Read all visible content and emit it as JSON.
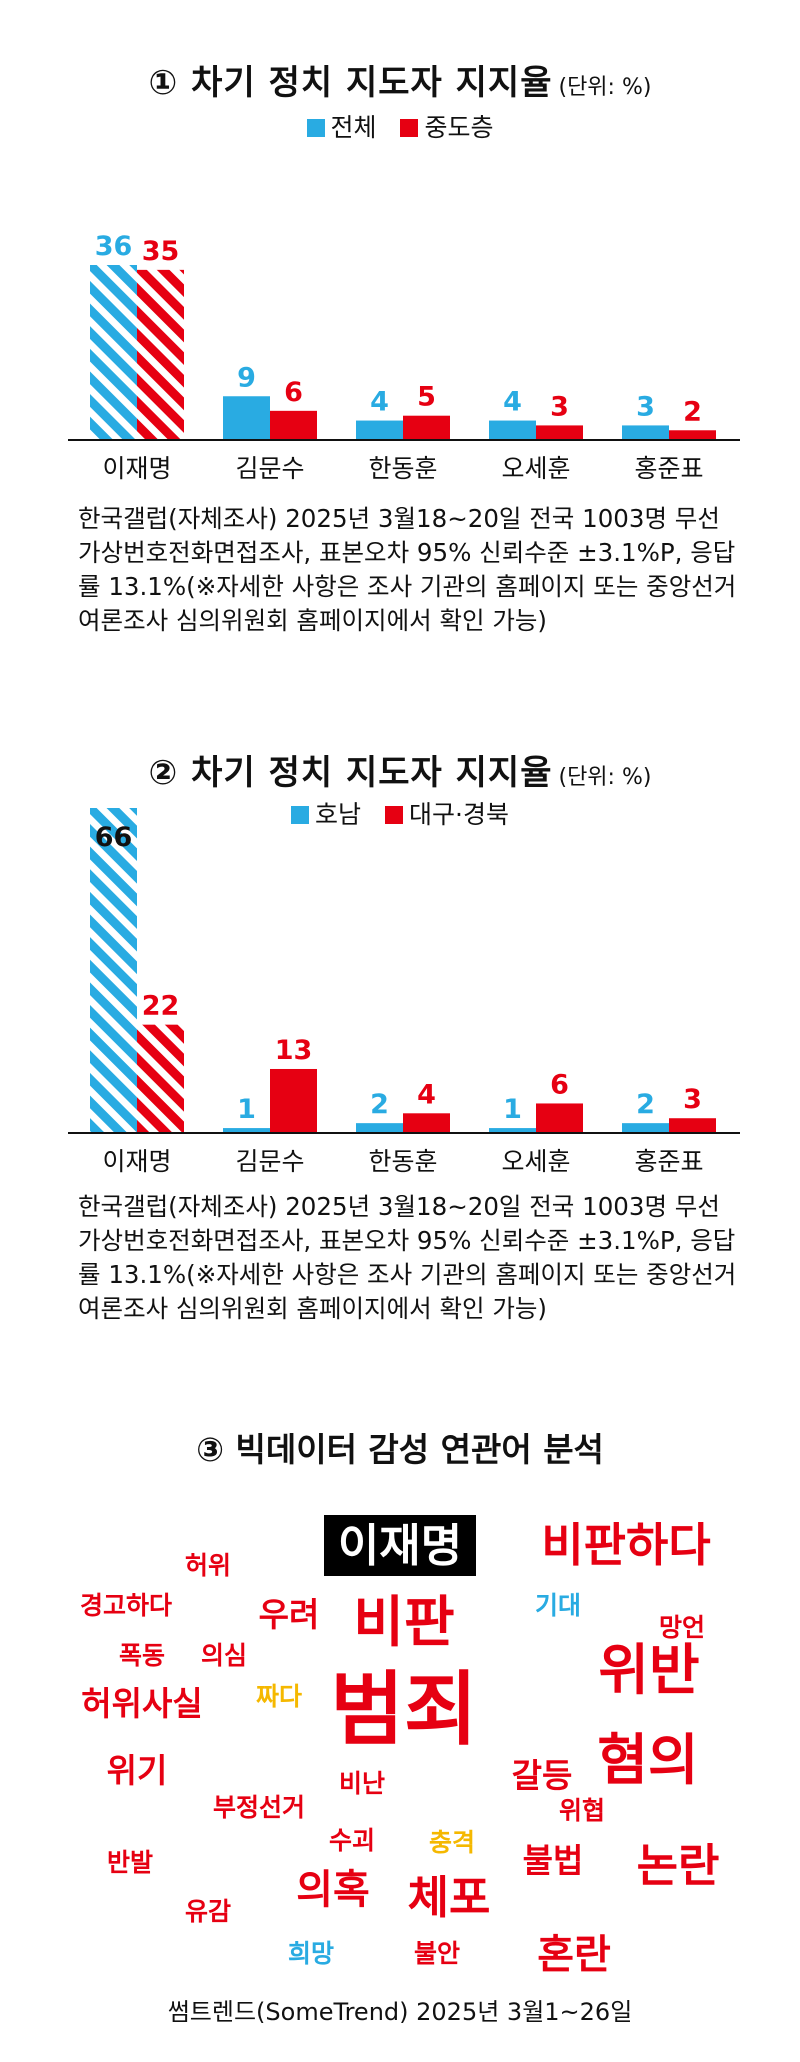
{
  "colors": {
    "blue": "#29ABE2",
    "red": "#E60012",
    "yellow": "#F5B800",
    "black": "#000000"
  },
  "chart_data": [
    {
      "type": "bar",
      "title": "① 차기 정치 지도자 지지율",
      "unit": "(단위: %)",
      "categories": [
        "이재명",
        "김문수",
        "한동훈",
        "오세훈",
        "홍준표"
      ],
      "series": [
        {
          "name": "전체",
          "values": [
            36,
            9,
            4,
            4,
            3
          ]
        },
        {
          "name": "중도층",
          "values": [
            35,
            6,
            5,
            3,
            2
          ]
        }
      ],
      "ylim": [
        0,
        36
      ],
      "source": "한국갤럽(자체조사) 2025년 3월18~20일 전국 1003명 무선 가상번호전화면접조사, 표본오차 95% 신뢰수준 ±3.1%P, 응답률 13.1%(※자세한 사항은 조사 기관의 홈페이지 또는 중앙선거여론조사 심의위원회 홈페이지에서 확인 가능)"
    },
    {
      "type": "bar",
      "title": "② 차기 정치 지도자 지지율",
      "unit": "(단위: %)",
      "categories": [
        "이재명",
        "김문수",
        "한동훈",
        "오세훈",
        "홍준표"
      ],
      "series": [
        {
          "name": "호남",
          "values": [
            66,
            1,
            2,
            1,
            2
          ]
        },
        {
          "name": "대구·경북",
          "values": [
            22,
            13,
            4,
            6,
            3
          ]
        }
      ],
      "ylim": [
        0,
        66
      ],
      "source": "한국갤럽(자체조사) 2025년 3월18~20일 전국 1003명 무선 가상번호전화면접조사, 표본오차 95% 신뢰수준 ±3.1%P, 응답률 13.1%(※자세한 사항은 조사 기관의 홈페이지 또는 중앙선거여론조사 심의위원회 홈페이지에서 확인 가능)"
    }
  ],
  "wordcloud": {
    "title": "③ 빅데이터 감성 연관어 분석",
    "words": [
      {
        "text": "이재명",
        "color": "boxed"
      },
      {
        "text": "비판하다",
        "color": "red"
      },
      {
        "text": "허위",
        "color": "red"
      },
      {
        "text": "경고하다",
        "color": "red"
      },
      {
        "text": "우려",
        "color": "red"
      },
      {
        "text": "비판",
        "color": "red"
      },
      {
        "text": "기대",
        "color": "blue"
      },
      {
        "text": "망언",
        "color": "red"
      },
      {
        "text": "폭동",
        "color": "red"
      },
      {
        "text": "의심",
        "color": "red"
      },
      {
        "text": "위반",
        "color": "red"
      },
      {
        "text": "허위사실",
        "color": "red"
      },
      {
        "text": "짜다",
        "color": "yellow"
      },
      {
        "text": "범죄",
        "color": "red"
      },
      {
        "text": "위기",
        "color": "red"
      },
      {
        "text": "혐의",
        "color": "red"
      },
      {
        "text": "갈등",
        "color": "red"
      },
      {
        "text": "비난",
        "color": "red"
      },
      {
        "text": "부정선거",
        "color": "red"
      },
      {
        "text": "위협",
        "color": "red"
      },
      {
        "text": "수괴",
        "color": "red"
      },
      {
        "text": "반발",
        "color": "red"
      },
      {
        "text": "충격",
        "color": "yellow"
      },
      {
        "text": "불법",
        "color": "red"
      },
      {
        "text": "논란",
        "color": "red"
      },
      {
        "text": "의혹",
        "color": "red"
      },
      {
        "text": "체포",
        "color": "red"
      },
      {
        "text": "유감",
        "color": "red"
      },
      {
        "text": "희망",
        "color": "blue"
      },
      {
        "text": "불안",
        "color": "red"
      },
      {
        "text": "혼란",
        "color": "red"
      }
    ],
    "source": "썸트렌드(SomeTrend) 2025년 3월1~26일"
  }
}
